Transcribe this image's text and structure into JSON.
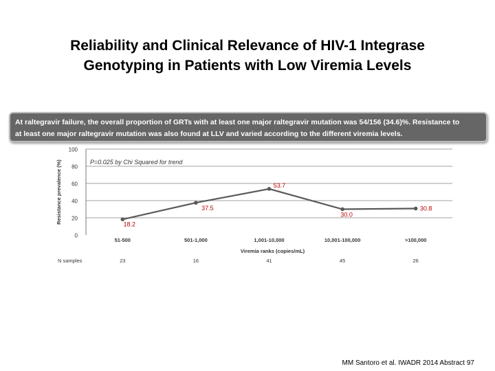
{
  "slide": {
    "title_line1": "Reliability and Clinical Relevance of HIV-1 Integrase",
    "title_line2": "Genotyping in Patients with Low Viremia Levels",
    "citation": "MM Santoro et al. IWADR 2014 Abstract 97"
  },
  "banner": {
    "line1": "At raltegravir failure, the overall proportion of GRTs with at least one major raltegravir mutation was 54/156 (34.6)%. Resistance to",
    "line2": "at least one major raltegravir mutation was also found at LLV and varied according to  the different viremia levels."
  },
  "colors": {
    "line": "#595959",
    "label": "#c00000",
    "grid": "#a0a0a0",
    "banner_bg": "#666666"
  },
  "chart_data": {
    "type": "line",
    "annotation": "P=0.025 by Chi Squared for trend",
    "xlabel": "Viremia ranks (copies/mL)",
    "ylabel": "Resistance prevalence (%)",
    "ylim": [
      0,
      100
    ],
    "yticks": [
      0,
      20,
      40,
      60,
      80,
      100
    ],
    "categories": [
      "51-500",
      "501-1,000",
      "1,001-10,000",
      "10,001-100,000",
      ">100,000"
    ],
    "series": [
      {
        "name": "Resistance prevalence",
        "values": [
          18.2,
          37.5,
          53.7,
          30.0,
          30.8
        ]
      }
    ],
    "value_labels": [
      "18.2",
      "37.5",
      "53.7",
      "30.0",
      "30.8"
    ],
    "n_samples_label": "N samples",
    "n_samples": [
      "23",
      "16",
      "41",
      "45",
      "26"
    ],
    "grid": true
  }
}
